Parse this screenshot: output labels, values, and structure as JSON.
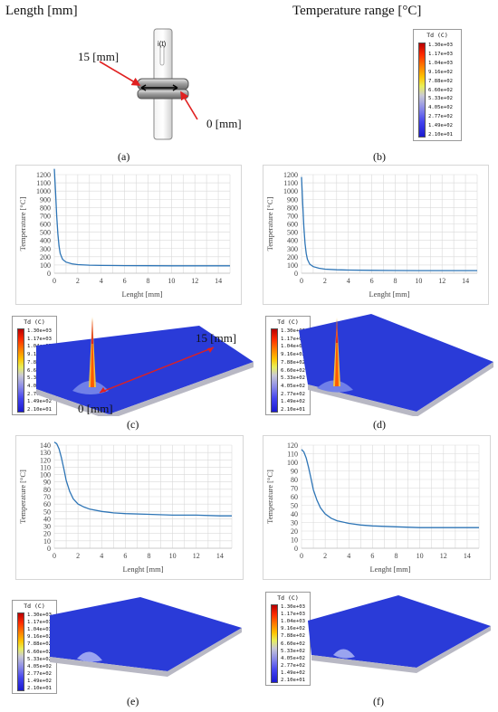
{
  "header": {
    "length_title": "Length [mm]",
    "temp_title": "Temperature range [°C]",
    "label_15": "15 [mm]",
    "label_0": "0 [mm]",
    "probe_label": "i(t)"
  },
  "legend": {
    "title": "Td (C)",
    "ticks": [
      "1.30e+03",
      "1.17e+03",
      "1.04e+03",
      "9.16e+02",
      "7.88e+02",
      "6.60e+02",
      "5.33e+02",
      "4.05e+02",
      "2.77e+02",
      "1.49e+02",
      "2.10e+01"
    ]
  },
  "captions": {
    "a": "(a)",
    "b": "(b)",
    "c": "(c)",
    "d": "(d)",
    "e": "(e)",
    "f": "(f)"
  },
  "plate_labels": {
    "c_15": "15 [mm]",
    "c_0": "0 [mm]"
  },
  "colors": {
    "curve": "#2e75b6",
    "grid": "#d9d9d9",
    "plate": "#2a3bd8",
    "arrow": "#e02020"
  },
  "chart_data": [
    {
      "id": "c-top",
      "type": "line",
      "xlabel": "Lenght [mm]",
      "ylabel": "Temperature [°C]",
      "xlim": [
        0,
        15
      ],
      "ylim": [
        0,
        1200
      ],
      "xticks": [
        0,
        2,
        4,
        6,
        8,
        10,
        12,
        14
      ],
      "yticks": [
        0,
        100,
        200,
        300,
        400,
        500,
        600,
        700,
        800,
        900,
        1000,
        1100,
        1200
      ],
      "series": [
        {
          "x": [
            0,
            0.1,
            0.2,
            0.3,
            0.4,
            0.5,
            0.7,
            1,
            1.5,
            2,
            3,
            4,
            6,
            8,
            10,
            12,
            14,
            15
          ],
          "y": [
            1270,
            1000,
            700,
            480,
            330,
            240,
            170,
            135,
            115,
            105,
            98,
            95,
            92,
            91,
            90,
            90,
            90,
            90
          ]
        }
      ]
    },
    {
      "id": "d-top",
      "type": "line",
      "xlabel": "Lenght [mm]",
      "ylabel": "Temperature [°C]",
      "xlim": [
        0,
        15
      ],
      "ylim": [
        0,
        1200
      ],
      "xticks": [
        0,
        2,
        4,
        6,
        8,
        10,
        12,
        14
      ],
      "yticks": [
        0,
        100,
        200,
        300,
        400,
        500,
        600,
        700,
        800,
        900,
        1000,
        1100,
        1200
      ],
      "series": [
        {
          "x": [
            0,
            0.1,
            0.2,
            0.3,
            0.4,
            0.5,
            0.7,
            1,
            1.5,
            2,
            3,
            4,
            6,
            8,
            10,
            12,
            14,
            15
          ],
          "y": [
            1170,
            850,
            560,
            360,
            240,
            170,
            110,
            80,
            60,
            50,
            42,
            38,
            35,
            33,
            32,
            32,
            32,
            32
          ]
        }
      ]
    },
    {
      "id": "e-top",
      "type": "line",
      "xlabel": "Lenght [mm]",
      "ylabel": "Temperature [°C]",
      "xlim": [
        0,
        15
      ],
      "ylim": [
        0,
        140
      ],
      "xticks": [
        0,
        2,
        4,
        6,
        8,
        10,
        12,
        14
      ],
      "yticks": [
        0,
        10,
        20,
        30,
        40,
        50,
        60,
        70,
        80,
        90,
        100,
        110,
        120,
        130,
        140
      ],
      "series": [
        {
          "x": [
            0,
            0.2,
            0.4,
            0.6,
            0.8,
            1,
            1.3,
            1.6,
            2,
            2.5,
            3,
            4,
            5,
            6,
            8,
            10,
            12,
            14,
            15
          ],
          "y": [
            144,
            142,
            135,
            123,
            108,
            92,
            77,
            67,
            60,
            56,
            53,
            50,
            48,
            47,
            46,
            45,
            45,
            44,
            44
          ]
        }
      ]
    },
    {
      "id": "f-top",
      "type": "line",
      "xlabel": "Lenght [mm]",
      "ylabel": "Temperature [°C]",
      "xlim": [
        0,
        15
      ],
      "ylim": [
        0,
        120
      ],
      "xticks": [
        0,
        2,
        4,
        6,
        8,
        10,
        12,
        14
      ],
      "yticks": [
        0,
        10,
        20,
        30,
        40,
        50,
        60,
        70,
        80,
        90,
        100,
        110,
        120
      ],
      "series": [
        {
          "x": [
            0,
            0.2,
            0.4,
            0.6,
            0.8,
            1,
            1.3,
            1.6,
            2,
            2.5,
            3,
            4,
            5,
            6,
            8,
            10,
            12,
            14,
            15
          ],
          "y": [
            115,
            112,
            105,
            94,
            81,
            68,
            56,
            47,
            40,
            35,
            32,
            29,
            27,
            26,
            25,
            24,
            24,
            24,
            24
          ]
        }
      ]
    }
  ]
}
